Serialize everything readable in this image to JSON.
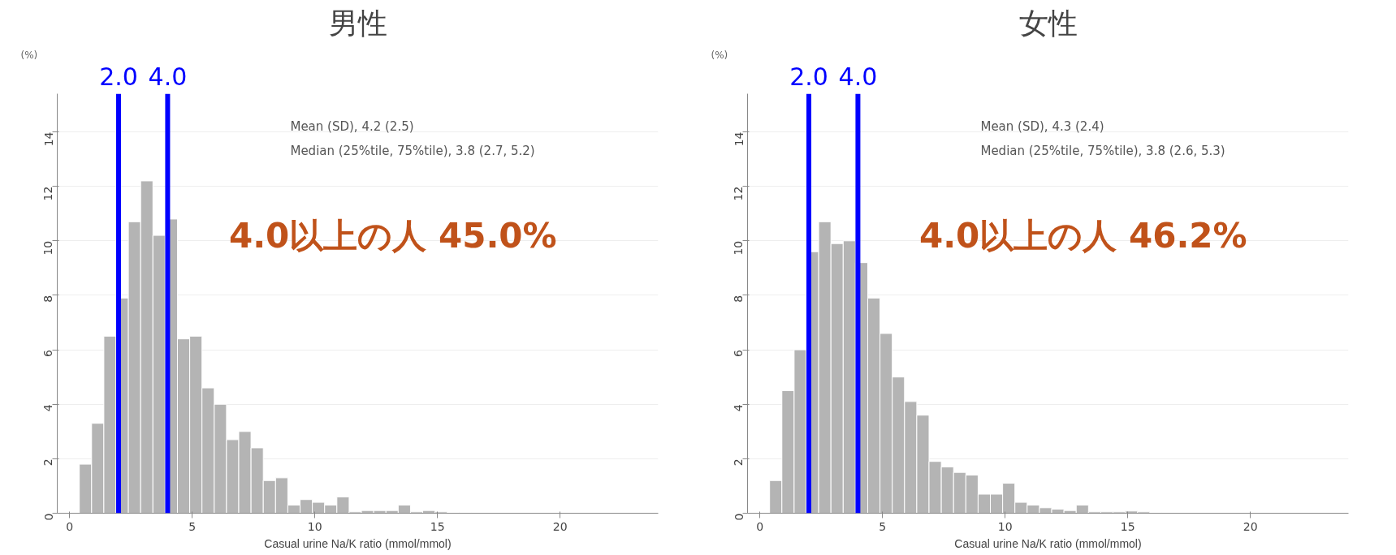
{
  "chart_data": [
    {
      "type": "histogram",
      "title": "男性",
      "xlabel": "Casual urine Na/K ratio (mmol/mmol)",
      "ylabel": "(%)",
      "color": "#b4b4b4",
      "bins": [
        0.4,
        0.9,
        1.4,
        1.9,
        2.4,
        2.9,
        3.4,
        3.9,
        4.4,
        4.9,
        5.4,
        5.9,
        6.4,
        6.9,
        7.4,
        7.9,
        8.4,
        8.9,
        9.4,
        9.9,
        10.4,
        10.9,
        11.4,
        11.9,
        12.4,
        12.9,
        13.4,
        13.9,
        14.4,
        14.9,
        15.4,
        15.9,
        16.4
      ],
      "values": [
        1.8,
        3.3,
        6.5,
        7.9,
        10.7,
        12.2,
        10.2,
        10.8,
        6.4,
        6.5,
        4.6,
        4.0,
        2.7,
        3.0,
        2.4,
        1.2,
        1.3,
        0.3,
        0.5,
        0.4,
        0.3,
        0.6,
        0.05,
        0.1,
        0.1,
        0.1,
        0.3,
        0.05,
        0.1,
        0.05,
        0.03,
        0.03
      ],
      "xlim": [
        -0.5,
        24
      ],
      "ylim": [
        0,
        15.4
      ],
      "xticks": [
        0,
        5,
        10,
        15,
        20
      ],
      "yticks": [
        0,
        2,
        4,
        6,
        8,
        10,
        12,
        14
      ],
      "grid": "y",
      "ref_lines": [
        {
          "axis": "x",
          "value": 2.0,
          "label": "2.0",
          "color": "#0000ff"
        },
        {
          "axis": "x",
          "value": 4.0,
          "label": "4.0",
          "color": "#0000ff"
        }
      ],
      "annotations": [
        "Mean (SD), 4.2 (2.5)",
        "Median (25%tile, 75%tile), 3.8 (2.7, 5.2)",
        "4.0以上の人 45.0%"
      ]
    },
    {
      "type": "histogram",
      "title": "女性",
      "xlabel": "Casual urine Na/K ratio (mmol/mmol)",
      "ylabel": "(%)",
      "color": "#b4b4b4",
      "bins": [
        0.4,
        0.9,
        1.4,
        1.9,
        2.4,
        2.9,
        3.4,
        3.9,
        4.4,
        4.9,
        5.4,
        5.9,
        6.4,
        6.9,
        7.4,
        7.9,
        8.4,
        8.9,
        9.4,
        9.9,
        10.4,
        10.9,
        11.4,
        11.9,
        12.4,
        12.9,
        13.4,
        13.9,
        14.4,
        14.9,
        15.4,
        15.9,
        16.4
      ],
      "values": [
        1.2,
        4.5,
        6.0,
        9.6,
        10.7,
        9.9,
        10.0,
        9.2,
        7.9,
        6.6,
        5.0,
        4.1,
        3.6,
        1.9,
        1.7,
        1.5,
        1.4,
        0.7,
        0.7,
        1.1,
        0.4,
        0.3,
        0.2,
        0.15,
        0.1,
        0.3,
        0.05,
        0.05,
        0.05,
        0.08,
        0.05,
        0.03
      ],
      "xlim": [
        -0.5,
        24
      ],
      "ylim": [
        0,
        15.4
      ],
      "xticks": [
        0,
        5,
        10,
        15,
        20
      ],
      "yticks": [
        0,
        2,
        4,
        6,
        8,
        10,
        12,
        14
      ],
      "grid": "y",
      "ref_lines": [
        {
          "axis": "x",
          "value": 2.0,
          "label": "2.0",
          "color": "#0000ff"
        },
        {
          "axis": "x",
          "value": 4.0,
          "label": "4.0",
          "color": "#0000ff"
        }
      ],
      "annotations": [
        "Mean (SD), 4.3 (2.4)",
        "Median (25%tile, 75%tile), 3.8 (2.6, 5.3)",
        "4.0以上の人 46.2%"
      ]
    }
  ]
}
